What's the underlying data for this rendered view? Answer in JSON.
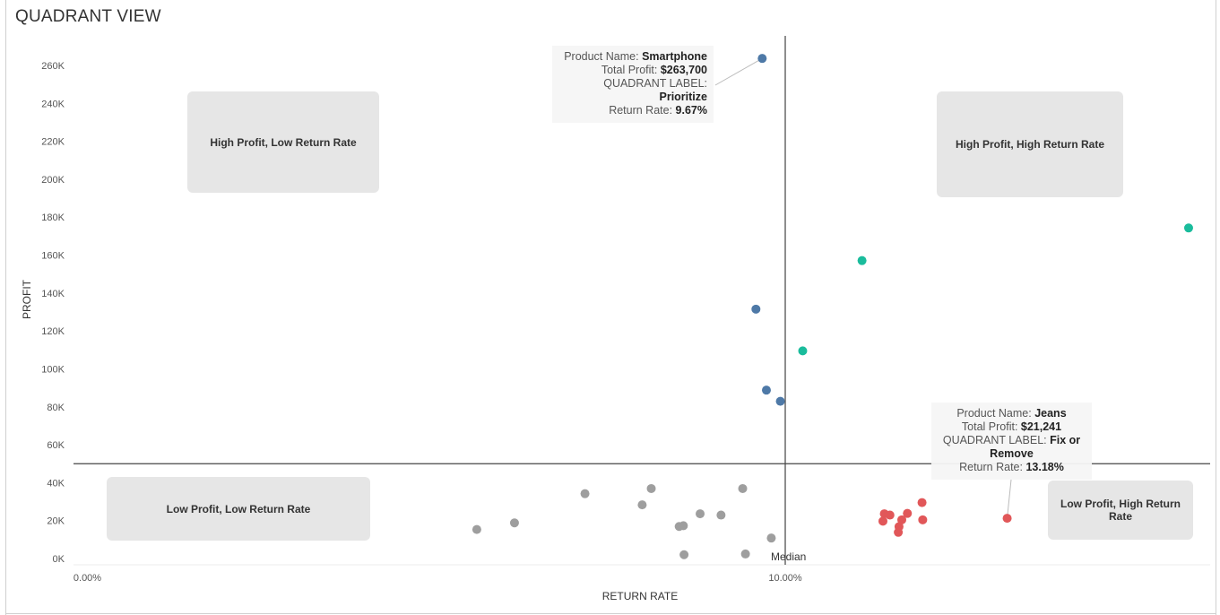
{
  "title": "QUADRANT VIEW",
  "chart_data": {
    "type": "scatter",
    "title": "QUADRANT VIEW",
    "xlabel": "RETURN RATE",
    "ylabel": "PROFIT",
    "xlim": [
      0.0,
      16.3
    ],
    "ylim": [
      -2000,
      276000
    ],
    "x_ticks": [
      0,
      10
    ],
    "x_tick_labels": [
      "0.00%",
      "10.00%"
    ],
    "y_ticks": [
      0,
      20000,
      40000,
      60000,
      80000,
      100000,
      120000,
      140000,
      160000,
      180000,
      200000,
      220000,
      240000,
      260000
    ],
    "y_tick_labels": [
      "0K",
      "20K",
      "40K",
      "60K",
      "80K",
      "100K",
      "120K",
      "140K",
      "160K",
      "180K",
      "200K",
      "220K",
      "240K",
      "260K"
    ],
    "grid": false,
    "reference_lines": {
      "x": 10.0,
      "y": 50000,
      "x_label": "Median"
    },
    "colors": {
      "Prioritize": "#4e79a7",
      "High Profit, High Return Rate": "#1abc9c",
      "Low Profit, Low Return Rate": "#9e9e9e",
      "Fix or Remove": "#e15759"
    },
    "series": [
      {
        "label": "Prioritize",
        "points": [
          [
            9.67,
            263700
          ],
          [
            9.58,
            131500
          ],
          [
            9.73,
            88800
          ],
          [
            9.93,
            82900
          ]
        ]
      },
      {
        "label": "High Profit, High Return Rate",
        "points": [
          [
            11.1,
            157100
          ],
          [
            10.25,
            109500
          ],
          [
            15.78,
            174300
          ]
        ]
      },
      {
        "label": "Low Profit, Low Return Rate",
        "points": [
          [
            5.58,
            15300
          ],
          [
            6.12,
            18800
          ],
          [
            7.13,
            34200
          ],
          [
            7.95,
            28300
          ],
          [
            8.08,
            36900
          ],
          [
            8.48,
            16900
          ],
          [
            8.54,
            17300
          ],
          [
            8.78,
            23600
          ],
          [
            9.08,
            22900
          ],
          [
            9.39,
            36900
          ],
          [
            9.8,
            10800
          ],
          [
            8.55,
            2000
          ],
          [
            9.43,
            2400
          ]
        ]
      },
      {
        "label": "Fix or Remove",
        "points": [
          [
            11.42,
            23600
          ],
          [
            11.5,
            22900
          ],
          [
            11.4,
            19700
          ],
          [
            11.63,
            16800
          ],
          [
            11.62,
            13800
          ],
          [
            11.67,
            20400
          ],
          [
            11.75,
            23800
          ],
          [
            11.96,
            29500
          ],
          [
            11.97,
            20400
          ],
          [
            13.18,
            21241
          ]
        ]
      }
    ],
    "quadrant_labels": [
      "High Profit, Low Return Rate",
      "High Profit, High Return Rate",
      "Low Profit, Low Return Rate",
      "Low Profit, High Return Rate"
    ],
    "tooltips": [
      {
        "point": [
          9.67,
          263700
        ],
        "product_key": "Product Name:",
        "product": "Smartphone",
        "profit_key": "Total Profit:",
        "profit": "$263,700",
        "quadrant_key": "QUADRANT LABEL:",
        "quadrant": "Prioritize",
        "rate_key": "Return Rate:",
        "rate": "9.67%"
      },
      {
        "point": [
          13.18,
          21241
        ],
        "product_key": "Product Name:",
        "product": "Jeans",
        "profit_key": "Total Profit:",
        "profit": "$21,241",
        "quadrant_key": "QUADRANT LABEL:",
        "quadrant": "Fix or Remove",
        "rate_key": "Return Rate:",
        "rate": "13.18%"
      }
    ]
  }
}
